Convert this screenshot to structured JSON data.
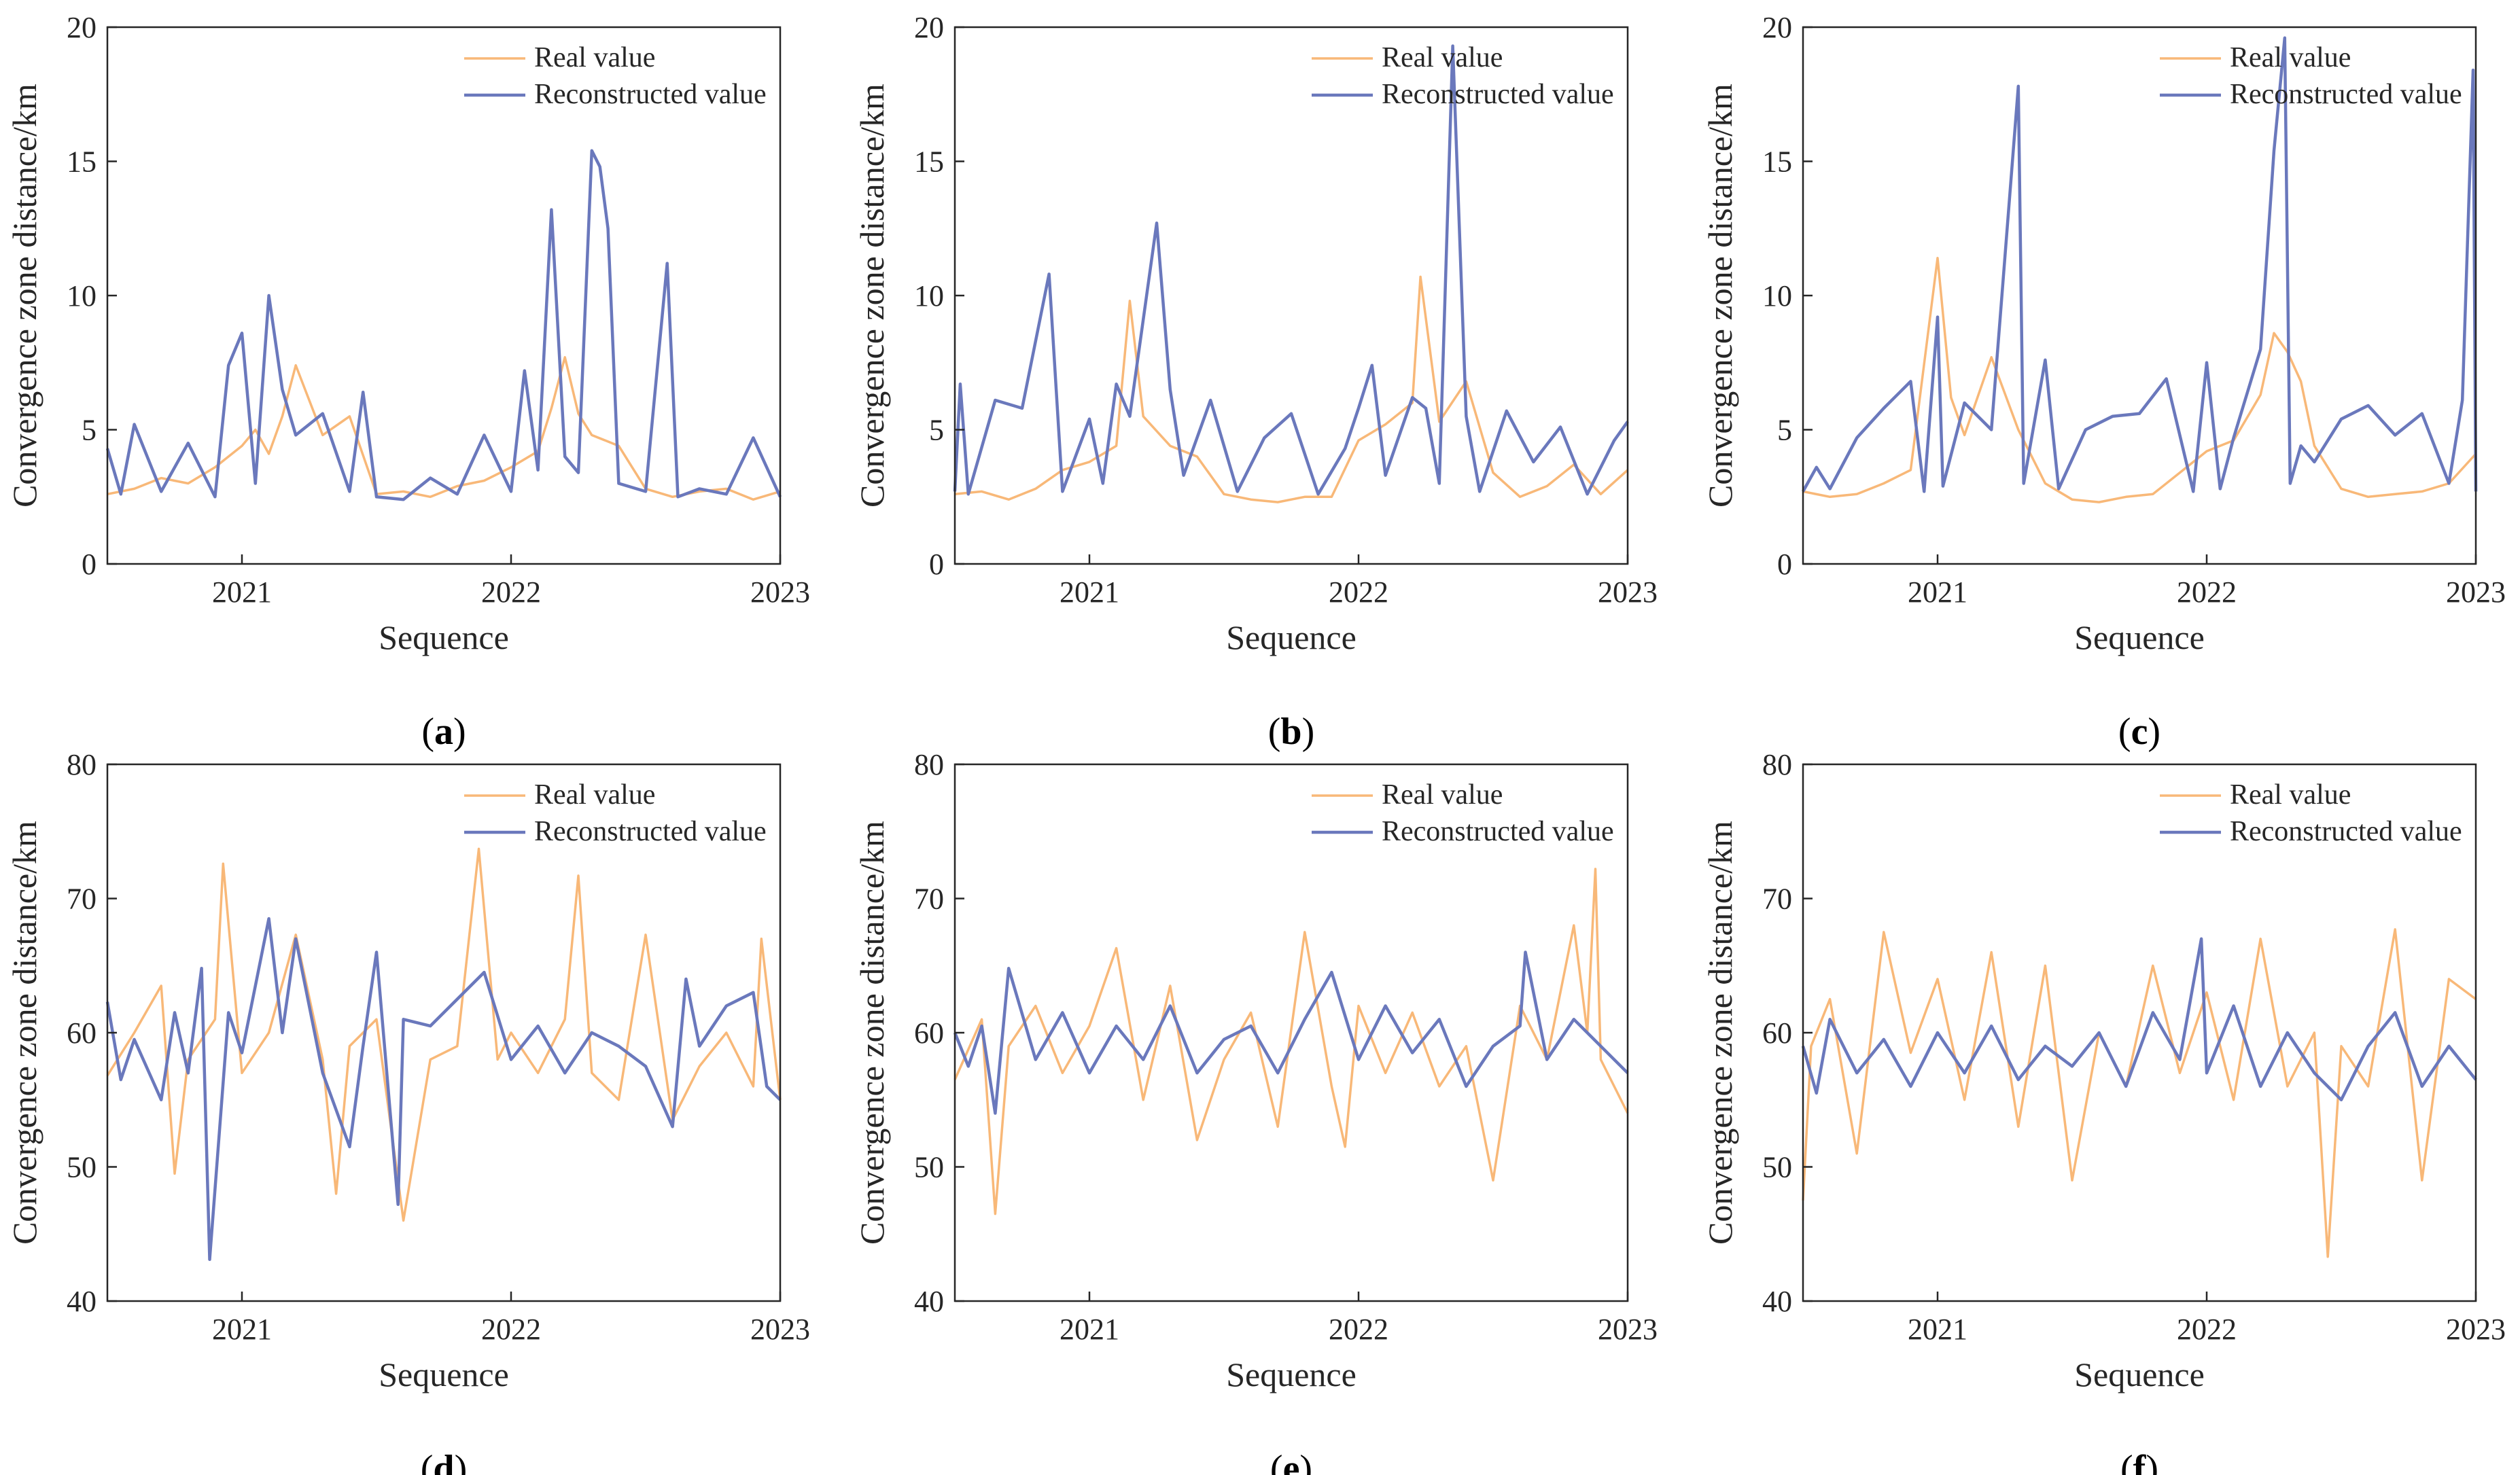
{
  "colors": {
    "real": "#F8B878",
    "reconstructed": "#6A78BC",
    "axis": "#262626"
  },
  "panel_labels": [
    "a",
    "b",
    "c",
    "d",
    "e",
    "f"
  ],
  "chart_data": [
    {
      "type": "line",
      "panel": "a",
      "xlabel": "Sequence",
      "ylabel": "Convergence zone distance/km",
      "xlim": [
        2020.5,
        2023.0
      ],
      "ylim": [
        0,
        20
      ],
      "xticks": [
        "2021",
        "2022",
        "2023"
      ],
      "yticks": [
        "0",
        "5",
        "10",
        "15",
        "20"
      ],
      "legend_position": "top-right",
      "grid": false,
      "series": [
        {
          "name": "Real value",
          "color": "#F8B878",
          "x": [
            2020.5,
            2020.6,
            2020.7,
            2020.8,
            2020.9,
            2021.0,
            2021.05,
            2021.1,
            2021.15,
            2021.2,
            2021.3,
            2021.4,
            2021.5,
            2021.6,
            2021.7,
            2021.8,
            2021.9,
            2022.0,
            2022.1,
            2022.15,
            2022.2,
            2022.25,
            2022.3,
            2022.4,
            2022.5,
            2022.6,
            2022.7,
            2022.8,
            2022.9,
            2023.0
          ],
          "y": [
            2.6,
            2.8,
            3.2,
            3.0,
            3.6,
            4.4,
            5.0,
            4.1,
            5.5,
            7.4,
            4.8,
            5.5,
            2.6,
            2.7,
            2.5,
            2.9,
            3.1,
            3.6,
            4.2,
            5.8,
            7.7,
            5.6,
            4.8,
            4.4,
            2.8,
            2.5,
            2.7,
            2.8,
            2.4,
            2.7
          ]
        },
        {
          "name": "Reconstructed value",
          "color": "#6A78BC",
          "x": [
            2020.5,
            2020.55,
            2020.6,
            2020.7,
            2020.8,
            2020.9,
            2020.95,
            2021.0,
            2021.05,
            2021.1,
            2021.15,
            2021.2,
            2021.3,
            2021.4,
            2021.45,
            2021.5,
            2021.6,
            2021.7,
            2021.8,
            2021.9,
            2022.0,
            2022.05,
            2022.1,
            2022.15,
            2022.2,
            2022.25,
            2022.3,
            2022.33,
            2022.36,
            2022.4,
            2022.5,
            2022.58,
            2022.62,
            2022.7,
            2022.8,
            2022.9,
            2023.0
          ],
          "y": [
            4.3,
            2.6,
            5.2,
            2.7,
            4.5,
            2.5,
            7.4,
            8.6,
            3.0,
            10.0,
            6.5,
            4.8,
            5.6,
            2.7,
            6.4,
            2.5,
            2.4,
            3.2,
            2.6,
            4.8,
            2.7,
            7.2,
            3.5,
            13.2,
            4.0,
            3.4,
            15.4,
            14.8,
            12.5,
            3.0,
            2.7,
            11.2,
            2.5,
            2.8,
            2.6,
            4.7,
            2.5
          ]
        }
      ]
    },
    {
      "type": "line",
      "panel": "b",
      "xlabel": "Sequence",
      "ylabel": "Convergence zone distance/km",
      "xlim": [
        2020.5,
        2023.0
      ],
      "ylim": [
        0,
        20
      ],
      "xticks": [
        "2021",
        "2022",
        "2023"
      ],
      "yticks": [
        "0",
        "5",
        "10",
        "15",
        "20"
      ],
      "legend_position": "top-right",
      "grid": false,
      "series": [
        {
          "name": "Real value",
          "color": "#F8B878",
          "x": [
            2020.5,
            2020.6,
            2020.7,
            2020.8,
            2020.9,
            2021.0,
            2021.1,
            2021.15,
            2021.2,
            2021.3,
            2021.4,
            2021.5,
            2021.6,
            2021.7,
            2021.8,
            2021.9,
            2022.0,
            2022.1,
            2022.2,
            2022.23,
            2022.3,
            2022.4,
            2022.5,
            2022.6,
            2022.7,
            2022.8,
            2022.9,
            2023.0
          ],
          "y": [
            2.6,
            2.7,
            2.4,
            2.8,
            3.5,
            3.8,
            4.4,
            9.8,
            5.5,
            4.4,
            4.0,
            2.6,
            2.4,
            2.3,
            2.5,
            2.5,
            4.6,
            5.2,
            6.0,
            10.7,
            5.3,
            6.8,
            3.4,
            2.5,
            2.9,
            3.7,
            2.6,
            3.5
          ]
        },
        {
          "name": "Reconstructed value",
          "color": "#6A78BC",
          "x": [
            2020.5,
            2020.52,
            2020.55,
            2020.65,
            2020.75,
            2020.85,
            2020.9,
            2021.0,
            2021.05,
            2021.1,
            2021.15,
            2021.25,
            2021.3,
            2021.35,
            2021.45,
            2021.55,
            2021.65,
            2021.75,
            2021.85,
            2021.95,
            2022.0,
            2022.05,
            2022.1,
            2022.2,
            2022.25,
            2022.3,
            2022.35,
            2022.4,
            2022.45,
            2022.55,
            2022.65,
            2022.75,
            2022.85,
            2022.95,
            2023.0
          ],
          "y": [
            2.7,
            6.7,
            2.6,
            6.1,
            5.8,
            10.8,
            2.7,
            5.4,
            3.0,
            6.7,
            5.5,
            12.7,
            6.5,
            3.3,
            6.1,
            2.7,
            4.7,
            5.6,
            2.6,
            4.3,
            5.8,
            7.4,
            3.3,
            6.2,
            5.8,
            3.0,
            19.3,
            5.5,
            2.7,
            5.7,
            3.8,
            5.1,
            2.6,
            4.6,
            5.3
          ]
        }
      ]
    },
    {
      "type": "line",
      "panel": "c",
      "xlabel": "Sequence",
      "ylabel": "Convergence zone distance/km",
      "xlim": [
        2020.5,
        2023.0
      ],
      "ylim": [
        0,
        20
      ],
      "xticks": [
        "2021",
        "2022",
        "2023"
      ],
      "yticks": [
        "0",
        "5",
        "10",
        "15",
        "20"
      ],
      "legend_position": "top-right",
      "grid": false,
      "series": [
        {
          "name": "Real value",
          "color": "#F8B878",
          "x": [
            2020.5,
            2020.6,
            2020.7,
            2020.8,
            2020.9,
            2021.0,
            2021.05,
            2021.1,
            2021.2,
            2021.3,
            2021.4,
            2021.5,
            2021.6,
            2021.7,
            2021.8,
            2021.9,
            2022.0,
            2022.1,
            2022.2,
            2022.25,
            2022.3,
            2022.35,
            2022.4,
            2022.5,
            2022.6,
            2022.7,
            2022.8,
            2022.9,
            2023.0
          ],
          "y": [
            2.7,
            2.5,
            2.6,
            3.0,
            3.5,
            11.4,
            6.2,
            4.8,
            7.7,
            5.0,
            3.0,
            2.4,
            2.3,
            2.5,
            2.6,
            3.4,
            4.2,
            4.6,
            6.3,
            8.6,
            7.9,
            6.8,
            4.4,
            2.8,
            2.5,
            2.6,
            2.7,
            3.0,
            4.1
          ]
        },
        {
          "name": "Reconstructed value",
          "color": "#6A78BC",
          "x": [
            2020.5,
            2020.55,
            2020.6,
            2020.7,
            2020.8,
            2020.9,
            2020.95,
            2021.0,
            2021.02,
            2021.1,
            2021.2,
            2021.3,
            2021.32,
            2021.4,
            2021.45,
            2021.55,
            2021.65,
            2021.75,
            2021.85,
            2021.95,
            2022.0,
            2022.05,
            2022.1,
            2022.2,
            2022.25,
            2022.29,
            2022.31,
            2022.35,
            2022.4,
            2022.5,
            2022.6,
            2022.7,
            2022.8,
            2022.9,
            2022.95,
            2022.99,
            2023.0
          ],
          "y": [
            2.7,
            3.6,
            2.8,
            4.7,
            5.8,
            6.8,
            2.7,
            9.2,
            2.9,
            6.0,
            5.0,
            17.8,
            3.0,
            7.6,
            2.8,
            5.0,
            5.5,
            5.6,
            6.9,
            2.7,
            7.5,
            2.8,
            4.7,
            8.0,
            15.4,
            19.6,
            3.0,
            4.4,
            3.8,
            5.4,
            5.9,
            4.8,
            5.6,
            3.0,
            6.1,
            18.4,
            2.7
          ]
        }
      ]
    },
    {
      "type": "line",
      "panel": "d",
      "xlabel": "Sequence",
      "ylabel": "Convergence zone distance/km",
      "xlim": [
        2020.5,
        2023.0
      ],
      "ylim": [
        40,
        80
      ],
      "xticks": [
        "2021",
        "2022",
        "2023"
      ],
      "yticks": [
        "40",
        "50",
        "60",
        "70",
        "80"
      ],
      "legend_position": "top-right",
      "grid": false,
      "series": [
        {
          "name": "Real value",
          "color": "#F8B878",
          "x": [
            2020.5,
            2020.6,
            2020.7,
            2020.75,
            2020.8,
            2020.9,
            2020.93,
            2021.0,
            2021.1,
            2021.2,
            2021.3,
            2021.35,
            2021.4,
            2021.5,
            2021.6,
            2021.7,
            2021.8,
            2021.88,
            2021.95,
            2022.0,
            2022.1,
            2022.2,
            2022.25,
            2022.3,
            2022.4,
            2022.5,
            2022.6,
            2022.7,
            2022.8,
            2022.9,
            2022.93,
            2023.0
          ],
          "y": [
            56.8,
            60.0,
            63.5,
            49.5,
            58.0,
            61.0,
            72.6,
            57.0,
            60.0,
            67.3,
            58.0,
            48.0,
            59.0,
            61.0,
            46.0,
            58.0,
            59.0,
            73.7,
            58.0,
            60.0,
            57.0,
            61.0,
            71.7,
            57.0,
            55.0,
            67.3,
            53.5,
            57.5,
            60.0,
            56.0,
            67.0,
            55.0
          ]
        },
        {
          "name": "Reconstructed value",
          "color": "#6A78BC",
          "x": [
            2020.5,
            2020.55,
            2020.6,
            2020.7,
            2020.75,
            2020.8,
            2020.85,
            2020.88,
            2020.95,
            2021.0,
            2021.1,
            2021.15,
            2021.2,
            2021.3,
            2021.4,
            2021.45,
            2021.5,
            2021.58,
            2021.6,
            2021.7,
            2021.8,
            2021.9,
            2022.0,
            2022.1,
            2022.2,
            2022.3,
            2022.4,
            2022.5,
            2022.6,
            2022.65,
            2022.7,
            2022.8,
            2022.9,
            2022.95,
            2023.0
          ],
          "y": [
            62.3,
            56.5,
            59.5,
            55.0,
            61.5,
            57.0,
            64.8,
            43.1,
            61.5,
            58.5,
            68.5,
            60.0,
            67.0,
            57.0,
            51.5,
            59.0,
            66.0,
            47.2,
            61.0,
            60.5,
            62.5,
            64.5,
            58.0,
            60.5,
            57.0,
            60.0,
            59.0,
            57.5,
            53.0,
            64.0,
            59.0,
            62.0,
            63.0,
            56.0,
            55.0
          ]
        }
      ]
    },
    {
      "type": "line",
      "panel": "e",
      "xlabel": "Sequence",
      "ylabel": "Convergence zone distance/km",
      "xlim": [
        2020.5,
        2023.0
      ],
      "ylim": [
        40,
        80
      ],
      "xticks": [
        "2021",
        "2022",
        "2023"
      ],
      "yticks": [
        "40",
        "50",
        "60",
        "70",
        "80"
      ],
      "legend_position": "top-right",
      "grid": false,
      "series": [
        {
          "name": "Real value",
          "color": "#F8B878",
          "x": [
            2020.5,
            2020.6,
            2020.65,
            2020.7,
            2020.8,
            2020.9,
            2021.0,
            2021.1,
            2021.2,
            2021.3,
            2021.4,
            2021.5,
            2021.6,
            2021.7,
            2021.8,
            2021.9,
            2021.95,
            2022.0,
            2022.1,
            2022.2,
            2022.3,
            2022.4,
            2022.5,
            2022.6,
            2022.7,
            2022.8,
            2022.85,
            2022.88,
            2022.9,
            2023.0
          ],
          "y": [
            56.5,
            61.0,
            46.5,
            59.0,
            62.0,
            57.0,
            60.5,
            66.3,
            55.0,
            63.5,
            52.0,
            58.0,
            61.5,
            53.0,
            67.5,
            56.0,
            51.5,
            62.0,
            57.0,
            61.5,
            56.0,
            59.0,
            49.0,
            62.0,
            58.0,
            68.0,
            60.0,
            72.2,
            58.0,
            54.0
          ]
        },
        {
          "name": "Reconstructed value",
          "color": "#6A78BC",
          "x": [
            2020.5,
            2020.55,
            2020.6,
            2020.65,
            2020.7,
            2020.8,
            2020.9,
            2021.0,
            2021.1,
            2021.2,
            2021.3,
            2021.4,
            2021.5,
            2021.6,
            2021.7,
            2021.8,
            2021.9,
            2022.0,
            2022.1,
            2022.2,
            2022.3,
            2022.4,
            2022.5,
            2022.6,
            2022.62,
            2022.7,
            2022.8,
            2022.9,
            2023.0
          ],
          "y": [
            60.0,
            57.5,
            60.5,
            54.0,
            64.8,
            58.0,
            61.5,
            57.0,
            60.5,
            58.0,
            62.0,
            57.0,
            59.5,
            60.5,
            57.0,
            61.0,
            64.5,
            58.0,
            62.0,
            58.5,
            61.0,
            56.0,
            59.0,
            60.5,
            66.0,
            58.0,
            61.0,
            59.0,
            57.0
          ]
        }
      ]
    },
    {
      "type": "line",
      "panel": "f",
      "xlabel": "Sequence",
      "ylabel": "Convergence zone distance/km",
      "xlim": [
        2020.5,
        2023.0
      ],
      "ylim": [
        40,
        80
      ],
      "xticks": [
        "2021",
        "2022",
        "2023"
      ],
      "yticks": [
        "40",
        "50",
        "60",
        "70",
        "80"
      ],
      "legend_position": "top-right",
      "grid": false,
      "series": [
        {
          "name": "Real value",
          "color": "#F8B878",
          "x": [
            2020.5,
            2020.53,
            2020.6,
            2020.7,
            2020.8,
            2020.9,
            2021.0,
            2021.1,
            2021.2,
            2021.3,
            2021.4,
            2021.5,
            2021.6,
            2021.7,
            2021.8,
            2021.9,
            2022.0,
            2022.1,
            2022.2,
            2022.3,
            2022.4,
            2022.45,
            2022.5,
            2022.6,
            2022.7,
            2022.8,
            2022.9,
            2023.0
          ],
          "y": [
            47.5,
            59.0,
            62.5,
            51.0,
            67.5,
            58.5,
            64.0,
            55.0,
            66.0,
            53.0,
            65.0,
            49.0,
            60.0,
            56.0,
            65.0,
            57.0,
            63.0,
            55.0,
            67.0,
            56.0,
            60.0,
            43.3,
            59.0,
            56.0,
            67.7,
            49.0,
            64.0,
            62.5
          ]
        },
        {
          "name": "Reconstructed value",
          "color": "#6A78BC",
          "x": [
            2020.5,
            2020.55,
            2020.6,
            2020.7,
            2020.8,
            2020.9,
            2021.0,
            2021.1,
            2021.2,
            2021.3,
            2021.4,
            2021.5,
            2021.6,
            2021.7,
            2021.8,
            2021.9,
            2021.98,
            2022.0,
            2022.1,
            2022.2,
            2022.3,
            2022.4,
            2022.5,
            2022.6,
            2022.7,
            2022.8,
            2022.9,
            2023.0
          ],
          "y": [
            59.0,
            55.5,
            61.0,
            57.0,
            59.5,
            56.0,
            60.0,
            57.0,
            60.5,
            56.5,
            59.0,
            57.5,
            60.0,
            56.0,
            61.5,
            58.0,
            67.0,
            57.0,
            62.0,
            56.0,
            60.0,
            57.0,
            55.0,
            59.0,
            61.5,
            56.0,
            59.0,
            56.5
          ]
        }
      ]
    }
  ]
}
